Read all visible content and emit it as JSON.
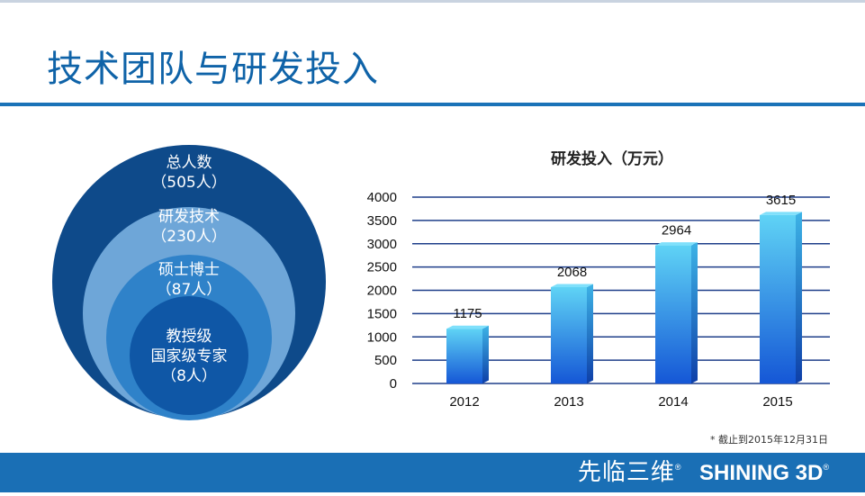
{
  "page": {
    "title": "技术团队与研发投入",
    "footnote": "* 截止到2015年12月31日"
  },
  "team": {
    "levels": [
      {
        "label": "总人数",
        "count": "（505人）",
        "color": "#0e4a8a"
      },
      {
        "label": "研发技术",
        "count": "（230人）",
        "color": "#6ea6d8"
      },
      {
        "label": "硕士博士",
        "count": "（87人）",
        "color": "#2f82c9"
      },
      {
        "label": "教授级",
        "label2": "国家级专家",
        "count": "（8人）",
        "color": "#0f57a6"
      }
    ]
  },
  "chart_data": {
    "type": "bar",
    "title": "研发投入（万元）",
    "categories": [
      "2012",
      "2013",
      "2014",
      "2015"
    ],
    "values": [
      1175,
      2068,
      2964,
      3615
    ],
    "value_labels": [
      "1175",
      "2068",
      "2964",
      "3615"
    ],
    "ylim": [
      0,
      4000
    ],
    "yticks": [
      0,
      500,
      1000,
      1500,
      2000,
      2500,
      3000,
      3500,
      4000
    ],
    "xlabel": "",
    "ylabel": "",
    "grid": true
  },
  "brand": {
    "cn": "先临三维",
    "en": "SHINING 3D",
    "reg": "®"
  },
  "colors": {
    "accent": "#1a73b8",
    "footer": "#1a6fb5",
    "bar_top": "#5fd3f5",
    "bar_bottom": "#1557d6",
    "grid": "#1f3f8a"
  }
}
